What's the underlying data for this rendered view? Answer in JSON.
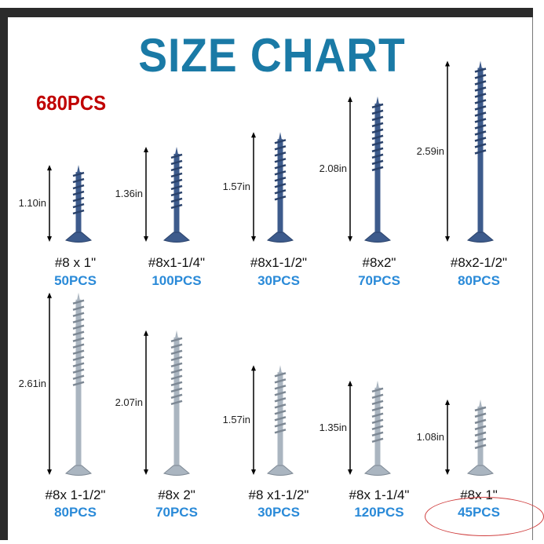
{
  "title": "SIZE CHART",
  "total": "680PCS",
  "colors": {
    "title": "#1a7aa6",
    "total": "#c00000",
    "count": "#2a8ad8",
    "blue_screw": "#3d5b8c",
    "silver_screw": "#aab5c0",
    "highlight_circle": "#d04040"
  },
  "top_row": [
    {
      "size": "#8 x 1\"",
      "count": "50PCS",
      "length": "1.10in",
      "inches": 1.1
    },
    {
      "size": "#8x1-1/4\"",
      "count": "100PCS",
      "length": "1.36in",
      "inches": 1.36
    },
    {
      "size": "#8x1-1/2\"",
      "count": "30PCS",
      "length": "1.57in",
      "inches": 1.57
    },
    {
      "size": "#8x2\"",
      "count": "70PCS",
      "length": "2.08in",
      "inches": 2.08
    },
    {
      "size": "#8x2-1/2\"",
      "count": "80PCS",
      "length": "2.59in",
      "inches": 2.59
    }
  ],
  "bottom_row": [
    {
      "size": "#8x 1-1/2\"",
      "count": "80PCS",
      "length": "2.61in",
      "inches": 2.61
    },
    {
      "size": "#8x 2\"",
      "count": "70PCS",
      "length": "2.07in",
      "inches": 2.07
    },
    {
      "size": "#8 x1-1/2\"",
      "count": "30PCS",
      "length": "1.57in",
      "inches": 1.57
    },
    {
      "size": "#8x 1-1/4\"",
      "count": "120PCS",
      "length": "1.35in",
      "inches": 1.35
    },
    {
      "size": "#8x 1\"",
      "count": "45PCS",
      "length": "1.08in",
      "inches": 1.08
    }
  ]
}
